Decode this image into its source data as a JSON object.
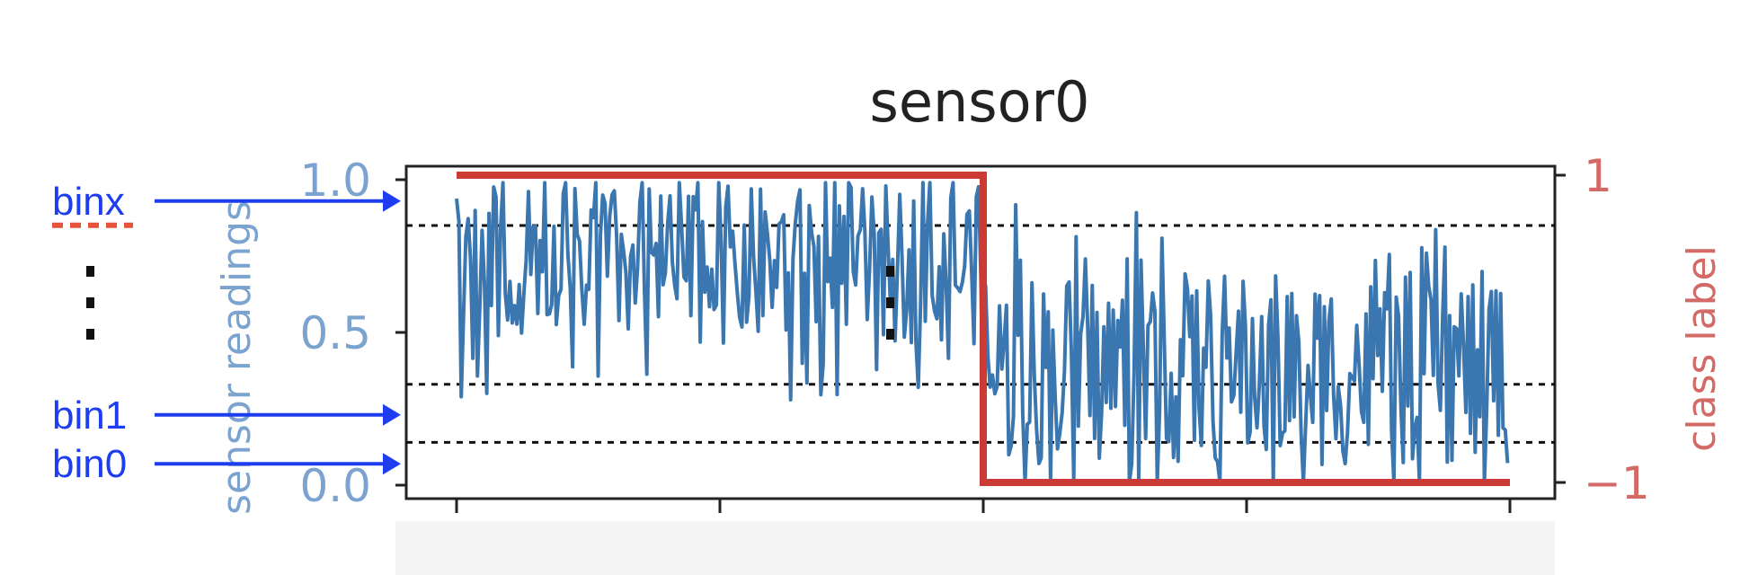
{
  "chart_data": {
    "type": "line",
    "title": "sensor0",
    "ylabel": "sensor readings",
    "y2label": "class label",
    "ylim": [
      0.0,
      1.0
    ],
    "y2lim": [
      -1,
      1
    ],
    "yticks": [
      "0.0",
      "0.5",
      "1.0"
    ],
    "y2ticks": [
      "−1",
      "1"
    ],
    "xtick_count": 5,
    "x_range": [
      0,
      1000
    ],
    "colors": {
      "readings": "#3a76b0",
      "class": "#cc3a35",
      "axis_left": "#7aa3cf",
      "axis_right": "#d46a66"
    },
    "series": [
      {
        "axis": "left",
        "style": "line",
        "seed": 1,
        "segments": [
          {
            "x0": 0,
            "x1": 500,
            "center": 0.72,
            "spread": 0.26
          },
          {
            "x0": 500,
            "x1": 1000,
            "center": 0.38,
            "spread": 0.32
          }
        ]
      },
      {
        "axis": "right",
        "style": "step",
        "x": [
          0,
          500,
          500,
          1000
        ],
        "values": [
          1,
          1,
          -1,
          -1
        ]
      }
    ],
    "bin_lines": [
      0.14,
      0.33,
      0.85
    ]
  },
  "annotations": {
    "bins": [
      {
        "label": "binx",
        "value": 0.93
      },
      {
        "label": "bin1",
        "value": 0.23
      },
      {
        "label": "bin0",
        "value": 0.07
      }
    ],
    "arrow_color": "#1f3df0",
    "underline_color": "#e8513a"
  }
}
